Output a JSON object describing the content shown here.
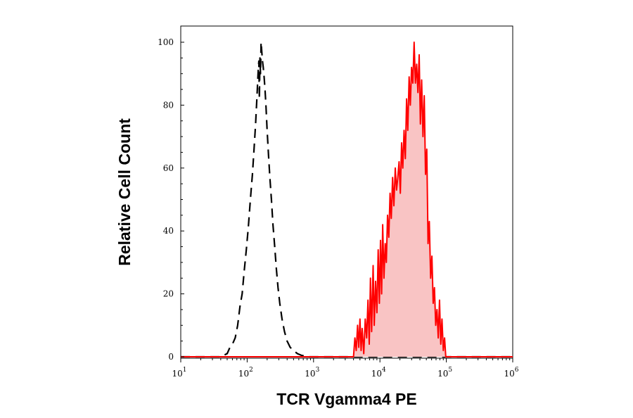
{
  "chart_data": {
    "type": "area",
    "xlabel": "TCR Vgamma4 PE",
    "ylabel": "Relative Cell Count",
    "x_scale": "log",
    "xlim": [
      10,
      1000000
    ],
    "ylim": [
      0,
      100
    ],
    "x_ticks": [
      {
        "value": 10,
        "base": "10",
        "exp": "1"
      },
      {
        "value": 100,
        "base": "10",
        "exp": "2"
      },
      {
        "value": 1000,
        "base": "10",
        "exp": "3"
      },
      {
        "value": 10000,
        "base": "10",
        "exp": "4"
      },
      {
        "value": 100000,
        "base": "10",
        "exp": "5"
      },
      {
        "value": 1000000,
        "base": "10",
        "exp": "6"
      }
    ],
    "y_ticks": [
      {
        "value": 0,
        "label": "0"
      },
      {
        "value": 20,
        "label": "20"
      },
      {
        "value": 40,
        "label": "40"
      },
      {
        "value": 60,
        "label": "60"
      },
      {
        "value": 80,
        "label": "80"
      },
      {
        "value": 100,
        "label": "100"
      }
    ],
    "grid": false,
    "series": [
      {
        "style": "dashed",
        "color": "#000000",
        "filled": false,
        "points": [
          [
            10,
            0
          ],
          [
            40,
            0
          ],
          [
            50,
            1
          ],
          [
            55,
            3
          ],
          [
            60,
            4
          ],
          [
            66,
            6
          ],
          [
            72,
            10
          ],
          [
            78,
            16
          ],
          [
            84,
            20
          ],
          [
            90,
            27
          ],
          [
            97,
            34
          ],
          [
            104,
            41
          ],
          [
            112,
            50
          ],
          [
            120,
            58
          ],
          [
            127,
            66
          ],
          [
            134,
            74
          ],
          [
            140,
            82
          ],
          [
            146,
            90
          ],
          [
            150,
            94
          ],
          [
            153,
            82
          ],
          [
            156,
            95
          ],
          [
            159,
            90
          ],
          [
            162,
            100
          ],
          [
            166,
            97
          ],
          [
            170,
            94
          ],
          [
            175,
            92
          ],
          [
            180,
            89
          ],
          [
            186,
            85
          ],
          [
            192,
            80
          ],
          [
            200,
            72
          ],
          [
            210,
            64
          ],
          [
            220,
            57
          ],
          [
            232,
            50
          ],
          [
            245,
            42
          ],
          [
            260,
            35
          ],
          [
            275,
            28
          ],
          [
            292,
            22
          ],
          [
            310,
            17
          ],
          [
            335,
            12
          ],
          [
            365,
            8
          ],
          [
            400,
            5
          ],
          [
            445,
            3
          ],
          [
            500,
            2
          ],
          [
            570,
            1
          ],
          [
            650,
            0.5
          ],
          [
            800,
            0
          ],
          [
            1000000,
            0
          ]
        ]
      },
      {
        "style": "solid",
        "color": "#ff0000",
        "fill": "#f9c4c4",
        "filled": true,
        "points": [
          [
            10,
            0
          ],
          [
            4000,
            0
          ],
          [
            4200,
            6
          ],
          [
            4400,
            2
          ],
          [
            4600,
            10
          ],
          [
            4800,
            3
          ],
          [
            5000,
            12
          ],
          [
            5200,
            2
          ],
          [
            5400,
            9
          ],
          [
            5700,
            1
          ],
          [
            6000,
            12
          ],
          [
            6300,
            6
          ],
          [
            6600,
            18
          ],
          [
            6900,
            4
          ],
          [
            7200,
            25
          ],
          [
            7500,
            8
          ],
          [
            7900,
            29
          ],
          [
            8200,
            10
          ],
          [
            8600,
            24
          ],
          [
            9000,
            14
          ],
          [
            9400,
            34
          ],
          [
            9800,
            17
          ],
          [
            10200,
            37
          ],
          [
            10600,
            20
          ],
          [
            11000,
            42
          ],
          [
            11500,
            25
          ],
          [
            12000,
            36
          ],
          [
            12500,
            30
          ],
          [
            13000,
            45
          ],
          [
            13600,
            38
          ],
          [
            14200,
            52
          ],
          [
            14800,
            44
          ],
          [
            15500,
            57
          ],
          [
            16200,
            48
          ],
          [
            17000,
            60
          ],
          [
            17800,
            53
          ],
          [
            18600,
            57
          ],
          [
            19400,
            62
          ],
          [
            20300,
            52
          ],
          [
            21200,
            68
          ],
          [
            22100,
            60
          ],
          [
            23100,
            72
          ],
          [
            24100,
            63
          ],
          [
            25200,
            82
          ],
          [
            26300,
            72
          ],
          [
            27500,
            89
          ],
          [
            28700,
            80
          ],
          [
            30000,
            92
          ],
          [
            31300,
            87
          ],
          [
            32700,
            100
          ],
          [
            34200,
            87
          ],
          [
            35700,
            93
          ],
          [
            37300,
            84
          ],
          [
            39000,
            96
          ],
          [
            40700,
            74
          ],
          [
            42500,
            88
          ],
          [
            44500,
            70
          ],
          [
            46500,
            83
          ],
          [
            48600,
            58
          ],
          [
            50800,
            66
          ],
          [
            53000,
            36
          ],
          [
            55400,
            43
          ],
          [
            58000,
            25
          ],
          [
            60600,
            32
          ],
          [
            63300,
            17
          ],
          [
            66200,
            22
          ],
          [
            69200,
            10
          ],
          [
            72300,
            15
          ],
          [
            75500,
            6
          ],
          [
            79000,
            18
          ],
          [
            82500,
            4
          ],
          [
            86000,
            12
          ],
          [
            90000,
            2
          ],
          [
            94000,
            6
          ],
          [
            98000,
            0
          ],
          [
            1000000,
            0
          ]
        ]
      }
    ]
  }
}
